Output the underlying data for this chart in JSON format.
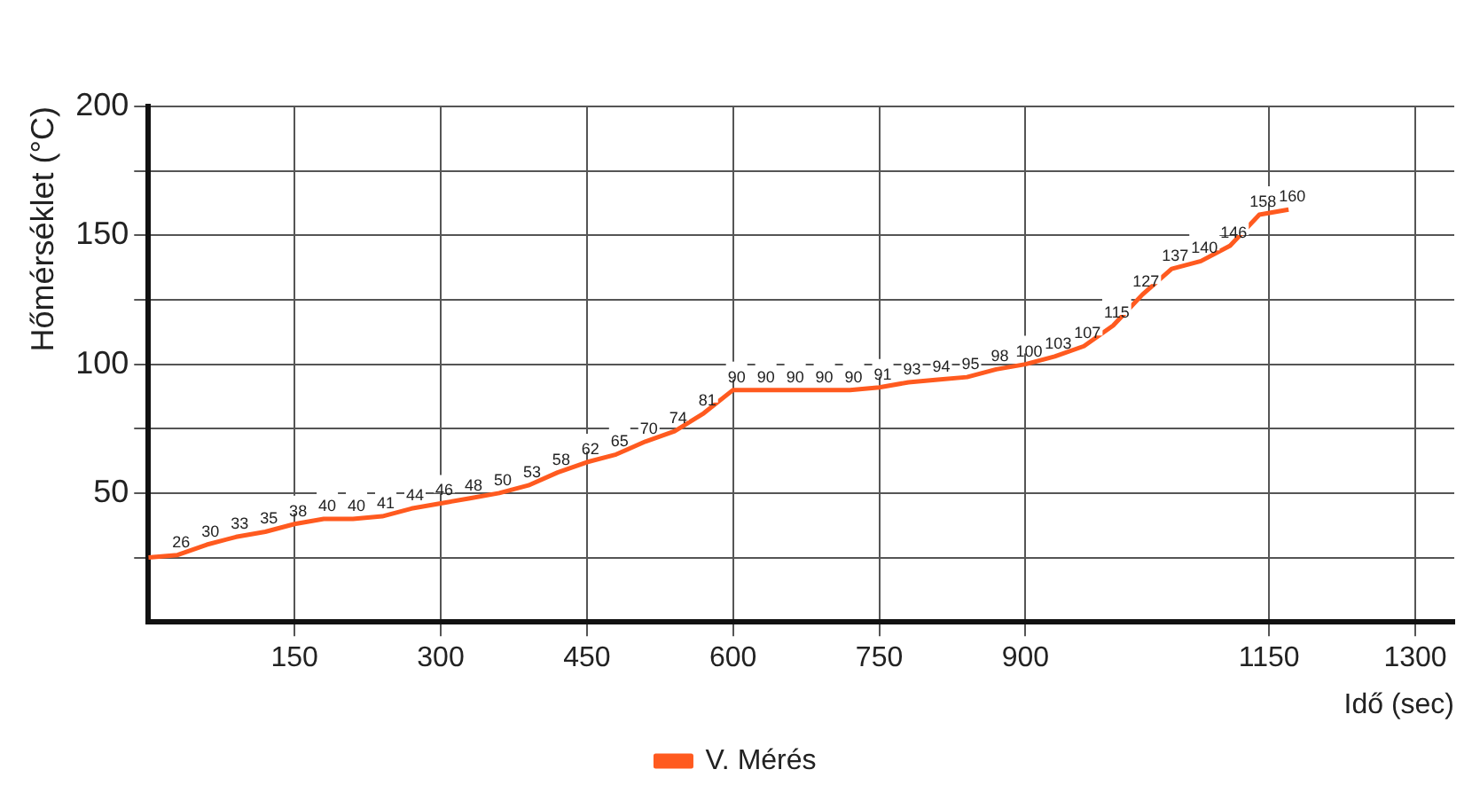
{
  "chart_data": {
    "type": "line",
    "xlabel": "Idő (sec)",
    "ylabel": "Hőmérséklet (°C)",
    "x": [
      0,
      30,
      60,
      90,
      120,
      150,
      180,
      210,
      240,
      270,
      300,
      330,
      360,
      390,
      420,
      450,
      480,
      510,
      540,
      570,
      600,
      630,
      660,
      690,
      720,
      750,
      780,
      810,
      840,
      870,
      900,
      930,
      960,
      990,
      1020,
      1050,
      1080,
      1110,
      1140,
      1170
    ],
    "series": [
      {
        "name": "V. Mérés",
        "color": "#ff5a1f",
        "values": [
          25,
          26,
          30,
          33,
          35,
          38,
          40,
          40,
          41,
          44,
          46,
          48,
          50,
          53,
          58,
          62,
          65,
          70,
          74,
          81,
          90,
          90,
          90,
          90,
          90,
          91,
          93,
          94,
          95,
          98,
          100,
          103,
          107,
          115,
          127,
          137,
          140,
          146,
          158,
          160
        ],
        "value_labels": [
          null,
          "26",
          "30",
          "33",
          "35",
          "38",
          "40",
          "40",
          "41",
          "44",
          "46",
          "48",
          "50",
          "53",
          "58",
          "62",
          "65",
          "70",
          "74",
          "81",
          "90",
          "90",
          "90",
          "90",
          "90",
          "91",
          "93",
          "94",
          "95",
          "98",
          "100",
          "103",
          "107",
          "115",
          "127",
          "137",
          "140",
          "146",
          "158",
          "160"
        ]
      }
    ],
    "xlim": [
      0,
      1340
    ],
    "xticks": [
      150,
      300,
      450,
      600,
      750,
      900,
      1150,
      1300
    ],
    "ylim": [
      0,
      200
    ],
    "yticks": [
      {
        "value": 25,
        "label": null
      },
      50,
      {
        "value": 75,
        "label": null
      },
      100,
      {
        "value": 125,
        "label": null
      },
      150,
      {
        "value": 175,
        "label": null
      },
      200
    ],
    "grid": true,
    "legend": "bottom",
    "marker": "none",
    "line_style": "solid"
  }
}
